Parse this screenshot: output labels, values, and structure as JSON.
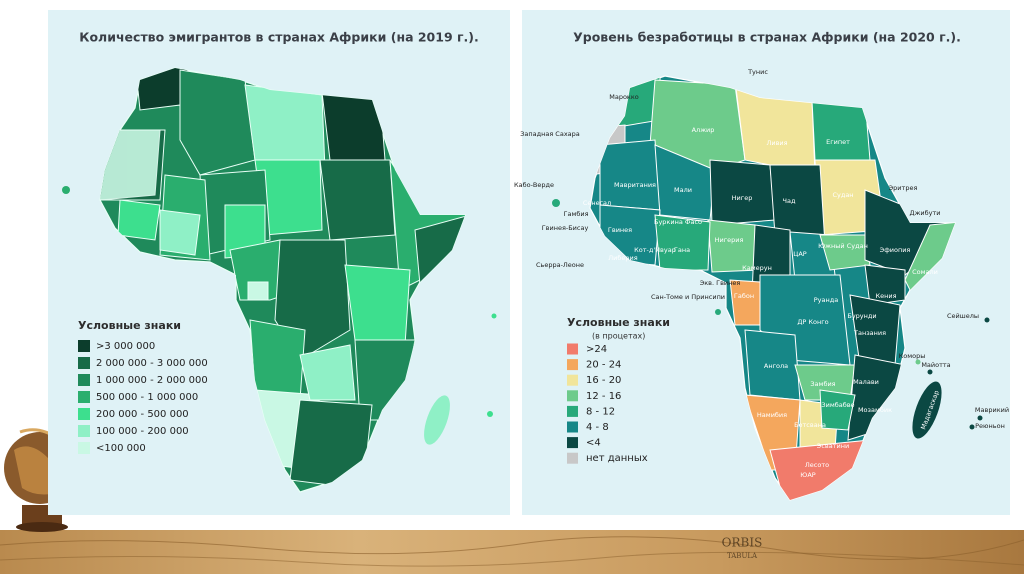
{
  "left_panel": {
    "title": "Количество эмигрантов в странах Африки (на 2019 г.).",
    "legend": {
      "title": "Условные знаки",
      "items": [
        {
          "label": ">3 000 000",
          "color": "#0c3d2c"
        },
        {
          "label": "2 000 000 - 3 000 000",
          "color": "#176b48"
        },
        {
          "label": "1 000 000 - 2 000 000",
          "color": "#1f8a5b"
        },
        {
          "label": "500 000 - 1 000 000",
          "color": "#2aae6e"
        },
        {
          "label": "200 000 - 500 000",
          "color": "#3ddf8e"
        },
        {
          "label": "100 000 - 200 000",
          "color": "#8ff0c6"
        },
        {
          "label": "<100 000",
          "color": "#c9f8e4"
        }
      ]
    }
  },
  "right_panel": {
    "title": "Уровень безработицы в странах Африки (на 2020 г.).",
    "legend": {
      "title": "Условные знаки",
      "subtitle": "(в процетах)",
      "items": [
        {
          "label": ">24",
          "color": "#f17b6b"
        },
        {
          "label": "20 - 24",
          "color": "#f4a75d"
        },
        {
          "label": "16 - 20",
          "color": "#f1e59b"
        },
        {
          "label": "12 - 16",
          "color": "#6dcb8b"
        },
        {
          "label": "8 - 12",
          "color": "#27a97a"
        },
        {
          "label": "4 - 8",
          "color": "#168787"
        },
        {
          "label": "<4",
          "color": "#0b4843"
        },
        {
          "label": "нет данных",
          "color": "#c8c8c8"
        }
      ]
    },
    "labels": [
      "Тунис",
      "Марокко",
      "Алжир",
      "Ливия",
      "Египет",
      "Западная Сахара",
      "Мавритания",
      "Мали",
      "Нигер",
      "Чад",
      "Судан",
      "Эритрея",
      "Джибути",
      "Кабо-Верде",
      "Сенегал",
      "Гамбия",
      "Гвинея-Бисау",
      "Гвинея",
      "Буркина Фасо",
      "Нигерия",
      "Кот-д'Ивуар",
      "Гана",
      "Сьерра-Леоне",
      "Либерия",
      "Камерун",
      "ЦАР",
      "Южный Судан",
      "Эфиопия",
      "Сомали",
      "Экв. Гвинея",
      "Сан-Томе и Принсипи",
      "Габон",
      "Руанда",
      "Кения",
      "Сейшелы",
      "ДР Конго",
      "Бурунди",
      "Танзания",
      "Коморы",
      "Майотта",
      "Ангола",
      "Замбия",
      "Малави",
      "Мозамбик",
      "Маврикий",
      "Реюньон",
      "Зимбабве",
      "Намибия",
      "Ботсвана",
      "Мадагаскар",
      "Эсватини",
      "Лесото",
      "ЮАР"
    ]
  },
  "background": {
    "texts": [
      "ORBIS",
      "TABULA"
    ]
  }
}
